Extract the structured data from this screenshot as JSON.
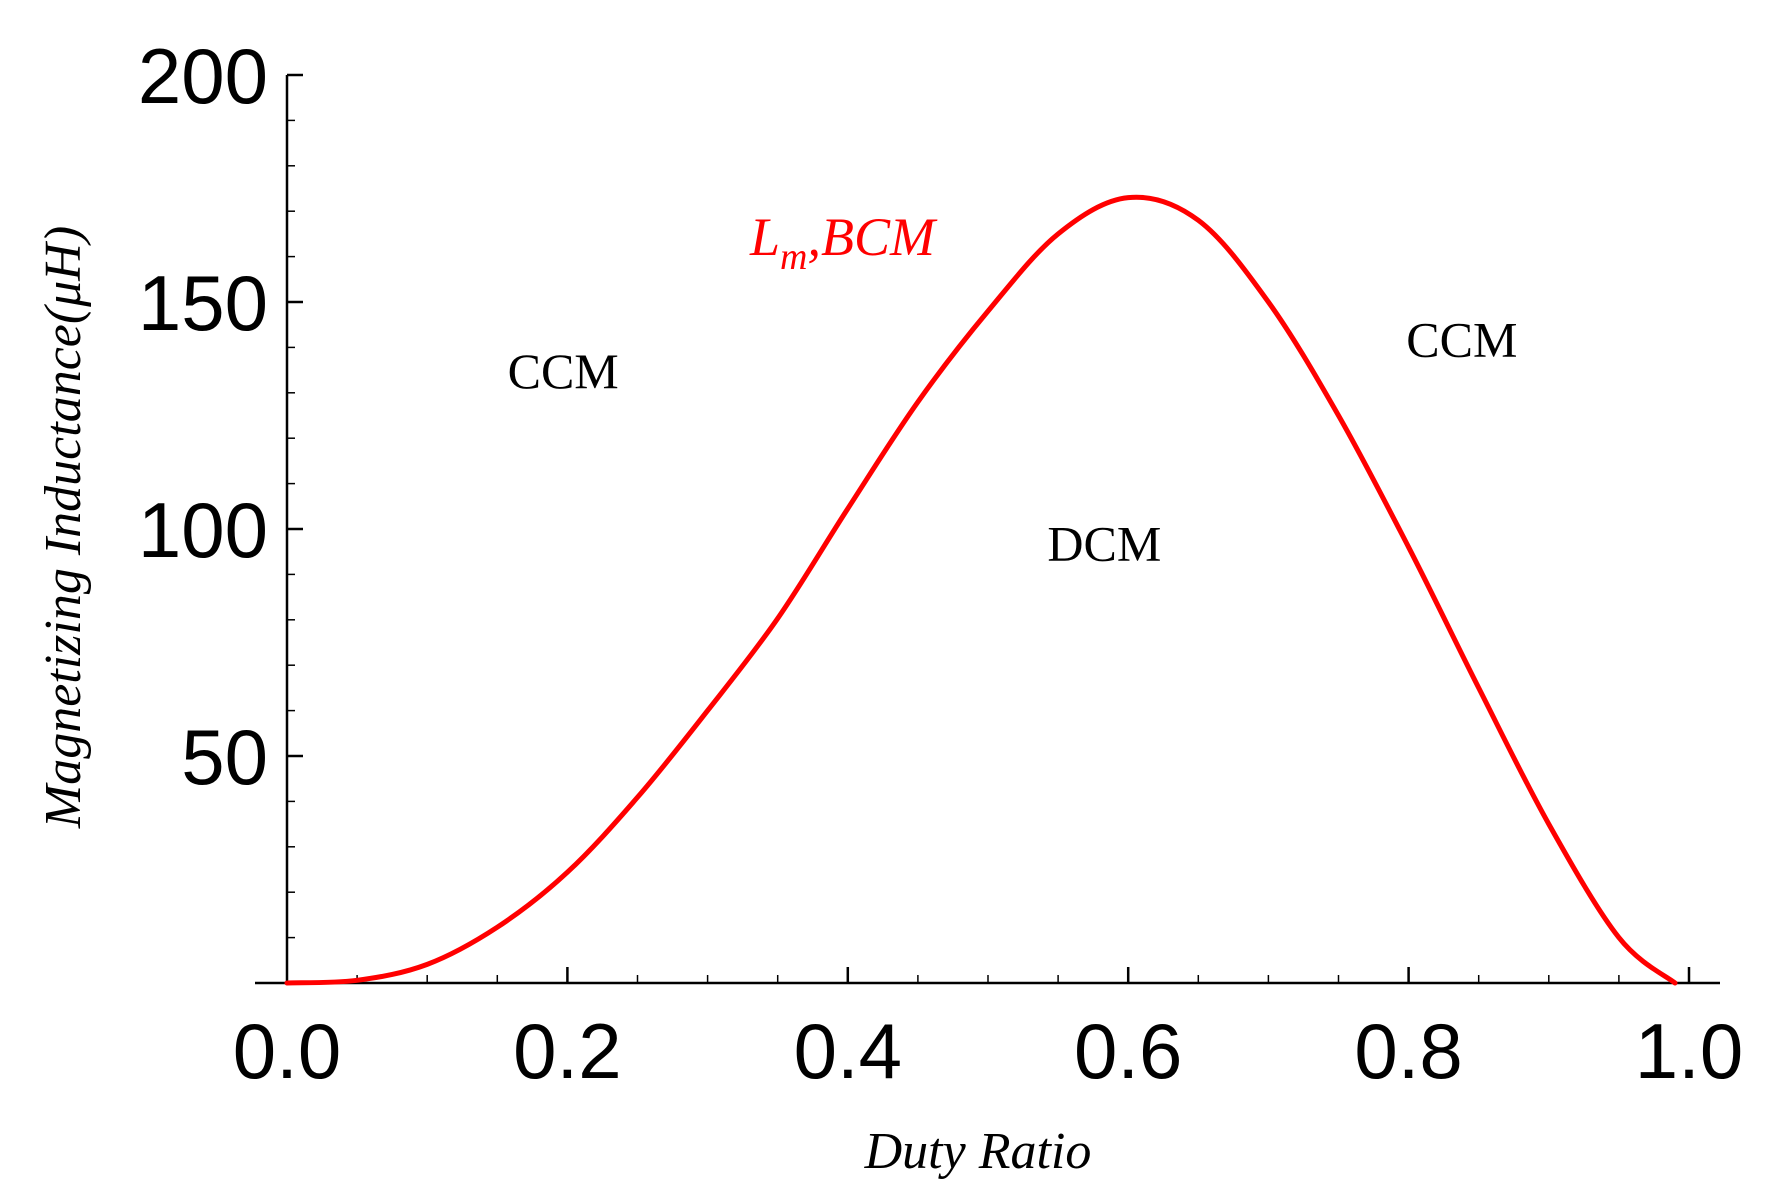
{
  "chart_data": {
    "type": "line",
    "title": "",
    "xlabel": "Duty Ratio",
    "ylabel": "Magnetizing Inductance(μH)",
    "xlim": [
      0,
      1
    ],
    "ylim": [
      0,
      200
    ],
    "x_ticks": [
      "0.0",
      "0.2",
      "0.4",
      "0.6",
      "0.8",
      "1.0"
    ],
    "y_ticks": [
      "50",
      "100",
      "150",
      "200"
    ],
    "series": [
      {
        "name": "Lm,BCM",
        "label_main": "L",
        "label_sub": "m",
        "label_rest": ",BCM",
        "color": "#ff0000",
        "x": [
          0.0,
          0.05,
          0.1,
          0.15,
          0.2,
          0.25,
          0.3,
          0.35,
          0.4,
          0.45,
          0.5,
          0.55,
          0.6,
          0.65,
          0.7,
          0.75,
          0.8,
          0.85,
          0.9,
          0.95,
          0.99
        ],
        "y": [
          0,
          0.6,
          4.1,
          12.3,
          24.4,
          40.9,
          60.0,
          80.3,
          104.5,
          128.0,
          148.0,
          165.0,
          173.0,
          168.0,
          150.0,
          125.0,
          96.0,
          65.0,
          35.0,
          10.0,
          0
        ]
      }
    ],
    "annotations": [
      {
        "text": "CCM",
        "x": 0.197,
        "y": 135
      },
      {
        "text": "CCM",
        "x": 0.838,
        "y": 142
      },
      {
        "text": "DCM",
        "x": 0.583,
        "y": 97
      }
    ]
  }
}
